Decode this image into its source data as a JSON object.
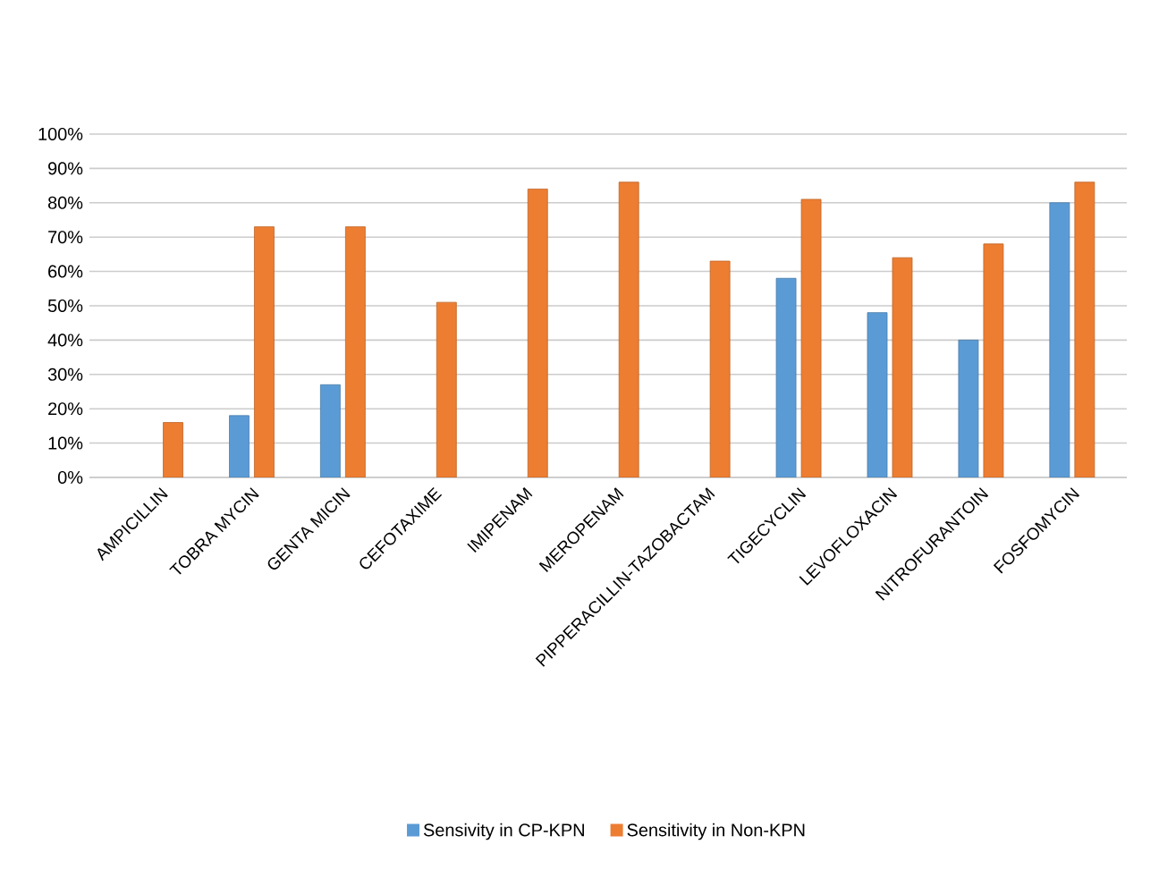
{
  "chart_data": {
    "type": "bar",
    "categories": [
      "AMPICILLIN",
      "TOBRA MYCIN",
      "GENTA MICIN",
      "CEFOTAXIME",
      "IMIPENAM",
      "MEROPENAM",
      "PIPPERACILLIN-TAZOBACTAM",
      "TIGECYCLIN",
      "LEVOFLOXACIN",
      "NITROFURANTOIN",
      "FOSFOMYCIN"
    ],
    "series": [
      {
        "name": "Sensivity in CP-KPN",
        "color": "#5b9bd5",
        "values": [
          null,
          18,
          27,
          null,
          null,
          null,
          null,
          58,
          48,
          40,
          80
        ]
      },
      {
        "name": "Sensitivity in Non-KPN",
        "color": "#ed7d31",
        "values": [
          16,
          73,
          73,
          51,
          84,
          86,
          63,
          81,
          64,
          68,
          86
        ]
      }
    ],
    "ylim": [
      0,
      100
    ],
    "yticks": [
      {
        "value": 0,
        "label": "0%"
      },
      {
        "value": 10,
        "label": "10%"
      },
      {
        "value": 20,
        "label": "20%"
      },
      {
        "value": 30,
        "label": "30%"
      },
      {
        "value": 40,
        "label": "40%"
      },
      {
        "value": 50,
        "label": "50%"
      },
      {
        "value": 60,
        "label": "60%"
      },
      {
        "value": 70,
        "label": "70%"
      },
      {
        "value": 80,
        "label": "80%"
      },
      {
        "value": 90,
        "label": "90%"
      },
      {
        "value": 100,
        "label": "100%"
      }
    ],
    "grid": "y",
    "legend": "bottom"
  }
}
